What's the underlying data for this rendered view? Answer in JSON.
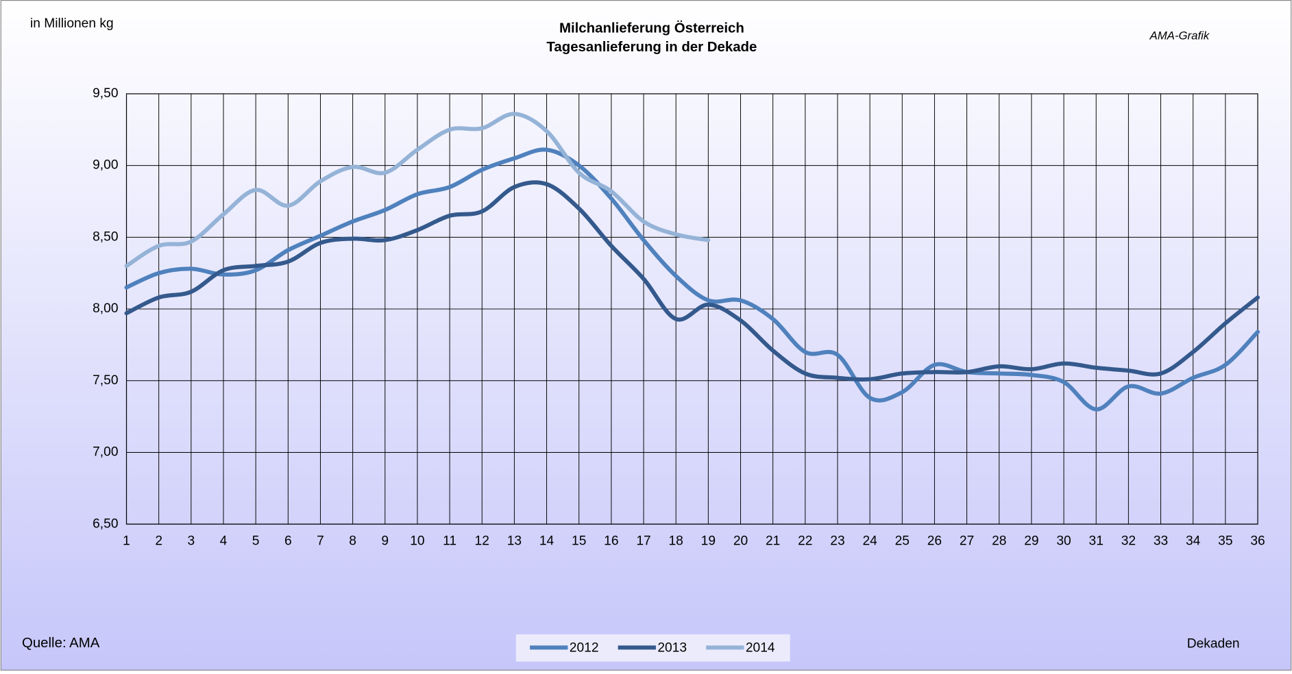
{
  "chart_data": {
    "type": "line",
    "title": "Milchanlieferung Österreich",
    "subtitle": "Tagesanlieferung in der Dekade",
    "y_label": "in Millionen kg",
    "x_label": "Dekaden",
    "credit": "AMA-Grafik",
    "source": "Quelle: AMA",
    "categories": [
      "1",
      "2",
      "3",
      "4",
      "5",
      "6",
      "7",
      "8",
      "9",
      "10",
      "11",
      "12",
      "13",
      "14",
      "15",
      "16",
      "17",
      "18",
      "19",
      "20",
      "21",
      "22",
      "23",
      "24",
      "25",
      "26",
      "27",
      "28",
      "29",
      "30",
      "31",
      "32",
      "33",
      "34",
      "35",
      "36"
    ],
    "series": [
      {
        "name": "2012",
        "color": "#4f81bd",
        "values": [
          8.15,
          8.25,
          8.28,
          8.24,
          8.27,
          8.41,
          8.51,
          8.61,
          8.69,
          8.8,
          8.85,
          8.97,
          9.05,
          9.11,
          9.0,
          8.77,
          8.48,
          8.23,
          8.06,
          8.06,
          7.93,
          7.7,
          7.68,
          7.38,
          7.42,
          7.61,
          7.56,
          7.55,
          7.54,
          7.49,
          7.3,
          7.46,
          7.41,
          7.52,
          7.61,
          7.84
        ]
      },
      {
        "name": "2013",
        "color": "#34598c",
        "values": [
          7.97,
          8.08,
          8.12,
          8.27,
          8.3,
          8.33,
          8.46,
          8.49,
          8.48,
          8.55,
          8.65,
          8.68,
          8.85,
          8.87,
          8.7,
          8.44,
          8.21,
          7.93,
          8.03,
          7.92,
          7.71,
          7.55,
          7.52,
          7.51,
          7.55,
          7.56,
          7.56,
          7.6,
          7.58,
          7.62,
          7.59,
          7.57,
          7.55,
          7.7,
          7.9,
          8.08
        ]
      },
      {
        "name": "2014",
        "color": "#95b3d7",
        "values": [
          8.3,
          8.44,
          8.47,
          8.66,
          8.83,
          8.72,
          8.89,
          8.99,
          8.95,
          9.11,
          9.25,
          9.26,
          9.36,
          9.24,
          8.95,
          8.82,
          8.61,
          8.52,
          8.48,
          null,
          null,
          null,
          null,
          null,
          null,
          null,
          null,
          null,
          null,
          null,
          null,
          null,
          null,
          null,
          null,
          null
        ]
      }
    ],
    "ylim": [
      6.5,
      9.5
    ],
    "yticks": [
      {
        "value": 6.5,
        "label": "6,50"
      },
      {
        "value": 7,
        "label": "7,00"
      },
      {
        "value": 7.5,
        "label": "7,50"
      },
      {
        "value": 8,
        "label": "8,00"
      },
      {
        "value": 8.5,
        "label": "8,50"
      },
      {
        "value": 9,
        "label": "9,00"
      },
      {
        "value": 9.5,
        "label": "9,50"
      }
    ],
    "grid": true,
    "legend": "bottom"
  }
}
